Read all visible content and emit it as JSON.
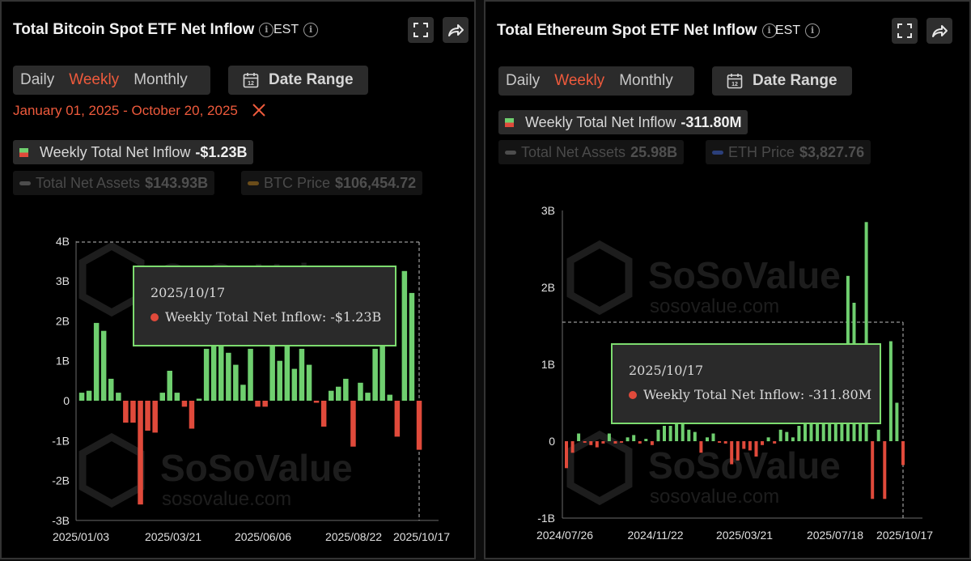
{
  "left": {
    "title": "Total Bitcoin Spot ETF Net Inflow",
    "timezone": "EST",
    "tabs": [
      "Daily",
      "Weekly",
      "Monthly"
    ],
    "active_tab": "Weekly",
    "date_range_label": "Date Range",
    "date_range_icon_text": "12",
    "selected_range": "January 01, 2025 - October 20, 2025",
    "legend_main": {
      "label": "Weekly Total Net Inflow",
      "value": "-$1.23B"
    },
    "legend_assets": {
      "label": "Total Net Assets",
      "value": "$143.93B"
    },
    "legend_price": {
      "label": "BTC Price",
      "value": "$106,454.72"
    },
    "watermark": {
      "brand": "SoSoValue",
      "url": "sosovalue.com"
    },
    "tooltip": {
      "date": "2025/10/17",
      "label": "Weekly Total Net Inflow: -$1.23B"
    },
    "colors": {
      "positive": "#6fcf6f",
      "negative": "#e04a3b",
      "asset_line": "#4d4d4d",
      "price_line": "#6b4d1a"
    }
  },
  "right": {
    "title": "Total Ethereum Spot ETF Net Inflow",
    "timezone": "EST",
    "tabs": [
      "Daily",
      "Weekly",
      "Monthly"
    ],
    "active_tab": "Weekly",
    "date_range_label": "Date Range",
    "date_range_icon_text": "12",
    "legend_main": {
      "label": "Weekly Total Net Inflow",
      "value": "-311.80M"
    },
    "legend_assets": {
      "label": "Total Net Assets",
      "value": "25.98B"
    },
    "legend_price": {
      "label": "ETH Price",
      "value": "$3,827.76"
    },
    "watermark": {
      "brand": "SoSoValue",
      "url": "sosovalue.com"
    },
    "tooltip": {
      "date": "2025/10/17",
      "label": "Weekly Total Net Inflow: -311.80M"
    },
    "colors": {
      "positive": "#6fcf6f",
      "negative": "#e04a3b",
      "asset_line": "#4d4d4d",
      "price_line": "#2b3f7a"
    }
  },
  "chart_data": [
    {
      "type": "bar",
      "title": "Total Bitcoin Spot ETF Net Inflow",
      "series": [
        {
          "name": "Weekly Total Net Inflow",
          "values": [
            0.2,
            0.25,
            1.95,
            1.75,
            0.55,
            0.2,
            -0.55,
            -0.55,
            -2.6,
            -0.75,
            -0.8,
            0.2,
            0.75,
            0.2,
            -0.15,
            -0.7,
            0.05,
            1.3,
            2.5,
            2.0,
            1.2,
            0.9,
            0.4,
            1.3,
            -0.15,
            -0.15,
            1.6,
            1.0,
            1.4,
            0.8,
            1.3,
            0.9,
            -0.05,
            -0.65,
            0.25,
            0.35,
            0.55,
            -1.15,
            0.45,
            0.2,
            1.3,
            2.3,
            0.15,
            -0.9,
            3.25,
            2.7,
            -1.23
          ]
        }
      ],
      "x_tick_labels": [
        "2025/01/03",
        "2025/03/21",
        "2025/06/06",
        "2025/08/22",
        "2025/10/17"
      ],
      "y_tick_labels": [
        "4B",
        "3B",
        "2B",
        "1B",
        "0",
        "-1B",
        "-2B",
        "-3B"
      ],
      "ylim": [
        -3,
        4
      ],
      "unit": "B"
    },
    {
      "type": "bar",
      "title": "Total Ethereum Spot ETF Net Inflow",
      "series": [
        {
          "name": "Weekly Total Net Inflow",
          "values": [
            -0.35,
            -0.15,
            0.1,
            -0.02,
            -0.05,
            -0.08,
            -0.03,
            0.1,
            -0.03,
            -0.02,
            0.05,
            0.08,
            -0.03,
            0.03,
            -0.05,
            0.15,
            0.2,
            0.2,
            0.3,
            0.4,
            0.15,
            0.12,
            -0.15,
            0.05,
            0.1,
            -0.02,
            -0.03,
            -0.3,
            -0.25,
            -0.1,
            -0.12,
            -0.2,
            -0.05,
            0.05,
            -0.03,
            0.15,
            0.12,
            0.05,
            0.2,
            0.25,
            0.25,
            0.3,
            0.4,
            0.3,
            0.35,
            0.3,
            2.15,
            1.8,
            0.55,
            2.85,
            -0.75,
            0.15,
            -0.75,
            1.3,
            0.5,
            -0.31
          ]
        }
      ],
      "x_tick_labels": [
        "2024/07/26",
        "2024/11/22",
        "2025/03/21",
        "2025/07/18",
        "2025/10/17"
      ],
      "y_tick_labels": [
        "3B",
        "2B",
        "1B",
        "0",
        "-1B"
      ],
      "ylim": [
        -1,
        3
      ],
      "unit": "B"
    }
  ]
}
